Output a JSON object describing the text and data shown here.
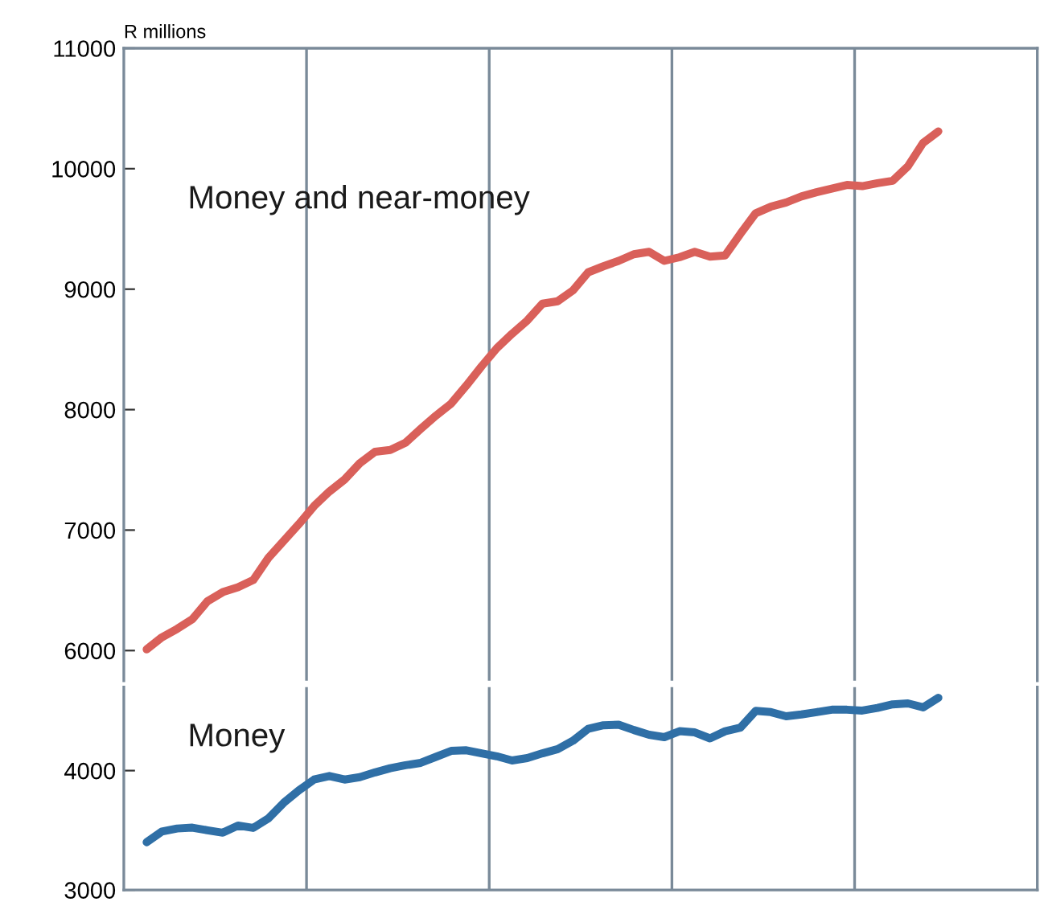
{
  "chart_data": [
    {
      "type": "line",
      "ylabel": "R millions",
      "categories": [
        null,
        null,
        null,
        null,
        null,
        null,
        null,
        null,
        null,
        null,
        null,
        null,
        null,
        null,
        null,
        null,
        null,
        null,
        null,
        null,
        null,
        null,
        null,
        null,
        null,
        null,
        null,
        null,
        null,
        null,
        null,
        null,
        null,
        null,
        null,
        null,
        null,
        null,
        null,
        null,
        null,
        null,
        null,
        null,
        null,
        null,
        null,
        null,
        null,
        null,
        null,
        null,
        null,
        null,
        null,
        null,
        null,
        null,
        null,
        null
      ],
      "ylim": [
        5750,
        11000
      ],
      "yticks": [
        6000,
        7000,
        8000,
        9000,
        10000,
        11000
      ],
      "tick_labels": "y",
      "series": [
        {
          "name": "Money and near-money",
          "color": "#d9605a",
          "values": [
            null,
            6010,
            6110,
            6180,
            6260,
            6410,
            6485,
            6525,
            6585,
            6770,
            6910,
            7050,
            7200,
            7320,
            7420,
            7555,
            7650,
            7665,
            7725,
            7840,
            7950,
            8050,
            8200,
            8360,
            8510,
            8630,
            8740,
            8880,
            8900,
            8990,
            9140,
            9190,
            9235,
            9290,
            9310,
            9235,
            9265,
            9310,
            9270,
            9280,
            9460,
            9630,
            9685,
            9720,
            9770,
            9805,
            9835,
            9865,
            9855,
            9880,
            9900,
            10020,
            10215,
            10310,
            null,
            null,
            null,
            null,
            null,
            null
          ]
        }
      ]
    },
    {
      "type": "line",
      "categories": [
        null,
        null,
        null,
        null,
        null,
        null,
        null,
        null,
        null,
        null,
        null,
        null,
        null,
        null,
        null,
        null,
        null,
        null,
        null,
        null,
        null,
        null,
        null,
        null,
        null,
        null,
        null,
        null,
        null,
        null,
        null,
        null,
        null,
        null,
        null,
        null,
        null,
        null,
        null,
        null,
        null,
        null,
        null,
        null,
        null,
        null,
        null,
        null,
        null,
        null,
        null,
        null,
        null,
        null,
        null,
        null,
        null,
        null,
        null,
        null
      ],
      "ylim": [
        3000,
        4700
      ],
      "yticks": [
        3000,
        4000
      ],
      "tick_labels": "y",
      "series": [
        {
          "name": "Money",
          "color": "#2f6fa6",
          "values": [
            null,
            3400,
            3490,
            3515,
            3522,
            3500,
            3480,
            3540,
            3520,
            3600,
            3730,
            3835,
            3925,
            3955,
            3925,
            3945,
            3985,
            4020,
            4045,
            4065,
            4115,
            4165,
            4170,
            4145,
            4120,
            4085,
            4105,
            4145,
            4180,
            4250,
            4350,
            4380,
            4385,
            4340,
            4300,
            4280,
            4330,
            4320,
            4270,
            4330,
            4360,
            4500,
            4490,
            4455,
            4470,
            4490,
            4510,
            4510,
            4503,
            4525,
            4555,
            4563,
            4530,
            4610,
            null,
            null,
            null,
            null,
            null,
            null
          ]
        }
      ]
    }
  ]
}
